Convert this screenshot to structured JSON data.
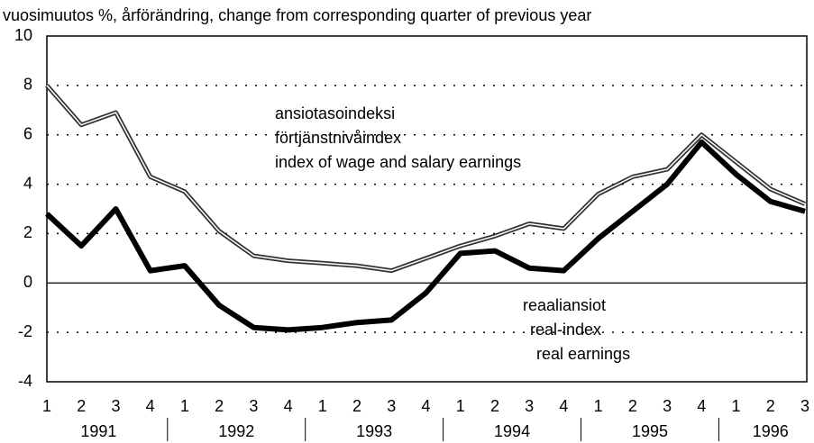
{
  "chart_data": {
    "type": "line",
    "title": "vuosimuutos %, årförändring, change from corresponding quarter of previous year",
    "categories": [
      "1",
      "2",
      "3",
      "4",
      "1",
      "2",
      "3",
      "4",
      "1",
      "2",
      "3",
      "4",
      "1",
      "2",
      "3",
      "4",
      "1",
      "2",
      "3",
      "4",
      "1",
      "2",
      "3"
    ],
    "years": [
      "1991",
      "1992",
      "1993",
      "1994",
      "1995",
      "1996"
    ],
    "series": [
      {
        "labels": [
          "ansiotasoindeksi",
          "förtjänstnivåindex",
          "index of wage and salary earnings"
        ],
        "color": "#333333",
        "values": [
          8.0,
          6.4,
          6.9,
          4.3,
          3.7,
          2.1,
          1.1,
          0.9,
          0.8,
          0.7,
          0.5,
          1.0,
          1.5,
          1.9,
          2.4,
          2.2,
          3.6,
          4.3,
          4.6,
          6.0,
          4.9,
          3.8,
          3.2
        ]
      },
      {
        "labels": [
          "reaaliansiot",
          "real-index",
          "real earnings"
        ],
        "color": "#000000",
        "values": [
          2.8,
          1.5,
          3.0,
          0.5,
          0.7,
          -0.9,
          -1.8,
          -1.9,
          -1.8,
          -1.6,
          -1.5,
          -0.4,
          1.2,
          1.3,
          0.6,
          0.5,
          1.8,
          2.9,
          4.0,
          5.7,
          4.4,
          3.3,
          2.9
        ]
      }
    ],
    "ylim": [
      -4,
      10
    ],
    "yticks": [
      -4,
      -2,
      0,
      2,
      4,
      6,
      8,
      10
    ],
    "grid": true
  }
}
